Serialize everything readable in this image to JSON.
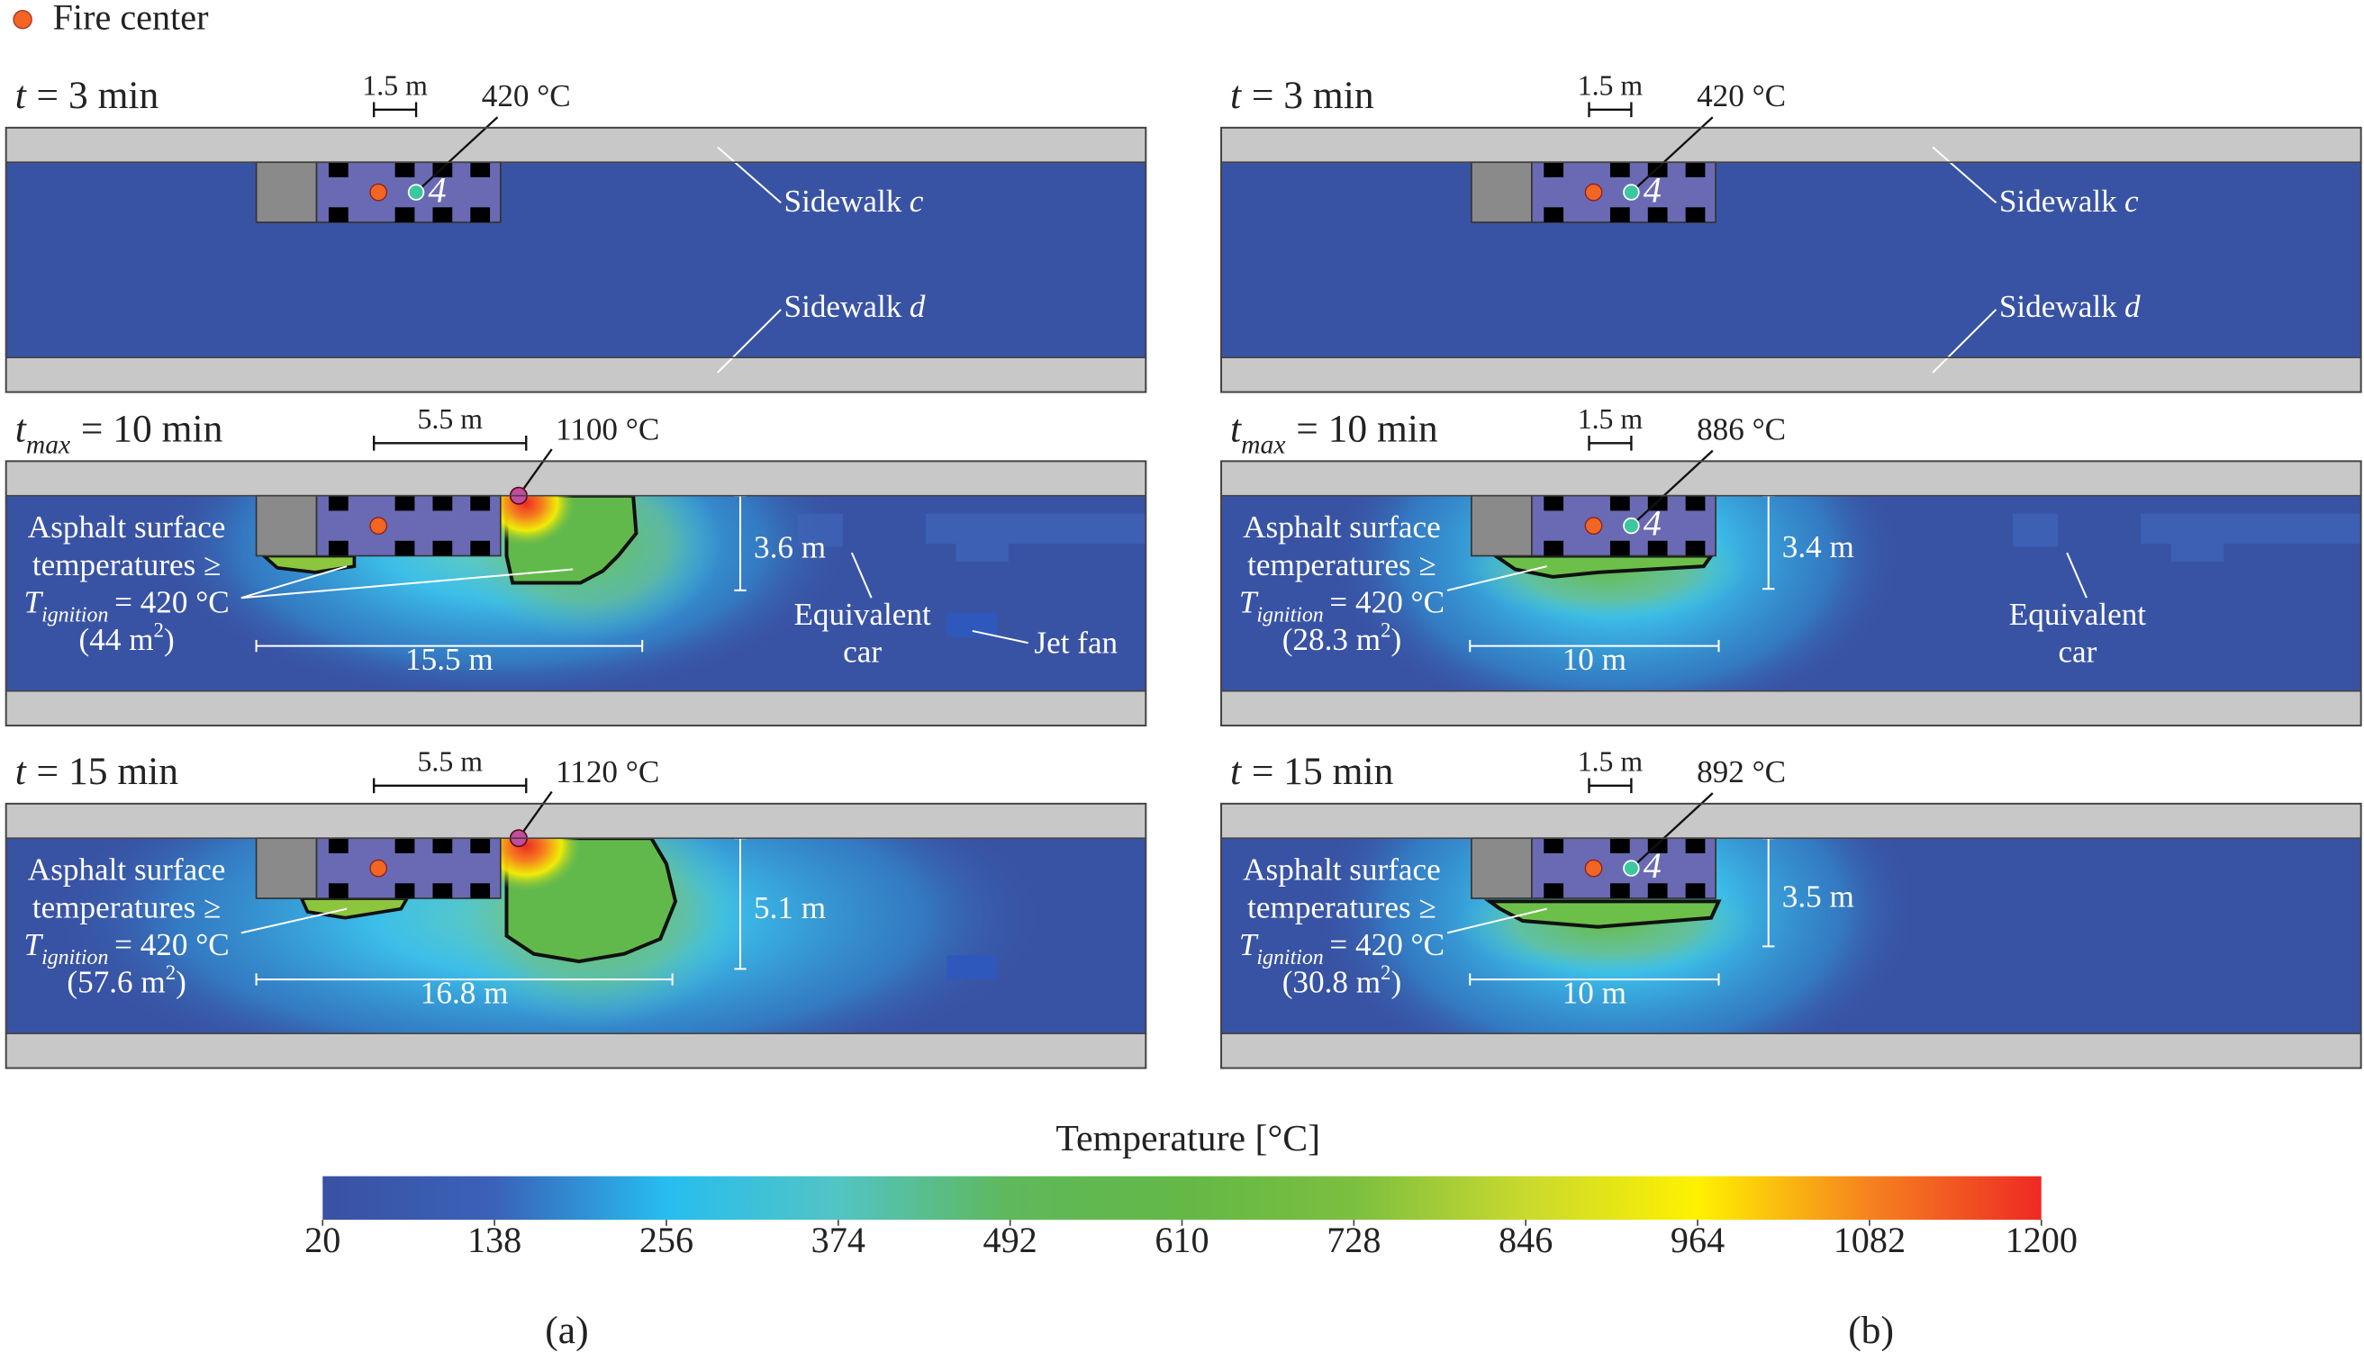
{
  "legend": "Fire center",
  "panels": {
    "a": {
      "label": "(a)",
      "frames": [
        {
          "time": {
            "var": "t",
            "rest": "= 3 min"
          },
          "scale": "1.5 m",
          "temp": "420 °C",
          "sensor": "4",
          "sidewalks": [
            {
              "name": "Sidewalk",
              "var": "c"
            },
            {
              "name": "Sidewalk",
              "var": "d"
            }
          ]
        },
        {
          "time": {
            "var": "t",
            "sub": "max",
            "rest": "= 10 min"
          },
          "scale": "5.5 m",
          "temp": "1100 °C",
          "asphalt": {
            "lines": [
              "Asphalt surface",
              "temperatures ≥"
            ],
            "var": "T",
            "sub": "ignition",
            "rest": "= 420 °C",
            "area": "(44 m",
            "exp": "2",
            "close": ")"
          },
          "height": "3.6 m",
          "width": "15.5 m",
          "car": [
            "Equivalent",
            "car"
          ],
          "jet_fan": "Jet fan"
        },
        {
          "time": {
            "var": "t",
            "rest": "= 15 min"
          },
          "scale": "5.5 m",
          "temp": "1120 °C",
          "asphalt": {
            "lines": [
              "Asphalt surface",
              "temperatures ≥"
            ],
            "var": "T",
            "sub": "ignition",
            "rest": "= 420 °C",
            "area": "(57.6 m",
            "exp": "2",
            "close": ")"
          },
          "height": "5.1 m",
          "width": "16.8 m"
        }
      ]
    },
    "b": {
      "label": "(b)",
      "frames": [
        {
          "time": {
            "var": "t",
            "rest": "= 3 min"
          },
          "scale": "1.5 m",
          "temp": "420 °C",
          "sensor": "4",
          "sidewalks": [
            {
              "name": "Sidewalk",
              "var": "c"
            },
            {
              "name": "Sidewalk",
              "var": "d"
            }
          ]
        },
        {
          "time": {
            "var": "t",
            "sub": "max",
            "rest": "= 10 min"
          },
          "scale": "1.5 m",
          "temp": "886 °C",
          "sensor": "4",
          "asphalt": {
            "lines": [
              "Asphalt surface",
              "temperatures ≥"
            ],
            "var": "T",
            "sub": "ignition",
            "rest": "= 420 °C",
            "area": "(28.3 m",
            "exp": "2",
            "close": ")"
          },
          "height": "3.4 m",
          "width": "10 m",
          "car": [
            "Equivalent",
            "car"
          ]
        },
        {
          "time": {
            "var": "t",
            "rest": "= 15 min"
          },
          "scale": "1.5 m",
          "temp": "892 °C",
          "sensor": "4",
          "asphalt": {
            "lines": [
              "Asphalt surface",
              "temperatures ≥"
            ],
            "var": "T",
            "sub": "ignition",
            "rest": "= 420 °C",
            "area": "(30.8 m",
            "exp": "2",
            "close": ")"
          },
          "height": "3.5 m",
          "width": "10 m"
        }
      ]
    }
  },
  "colorbar": {
    "title": "Temperature [°C]",
    "lim": [
      20,
      1200
    ],
    "ticks": [
      20,
      138,
      256,
      374,
      492,
      610,
      728,
      846,
      964,
      1082,
      1200
    ]
  }
}
